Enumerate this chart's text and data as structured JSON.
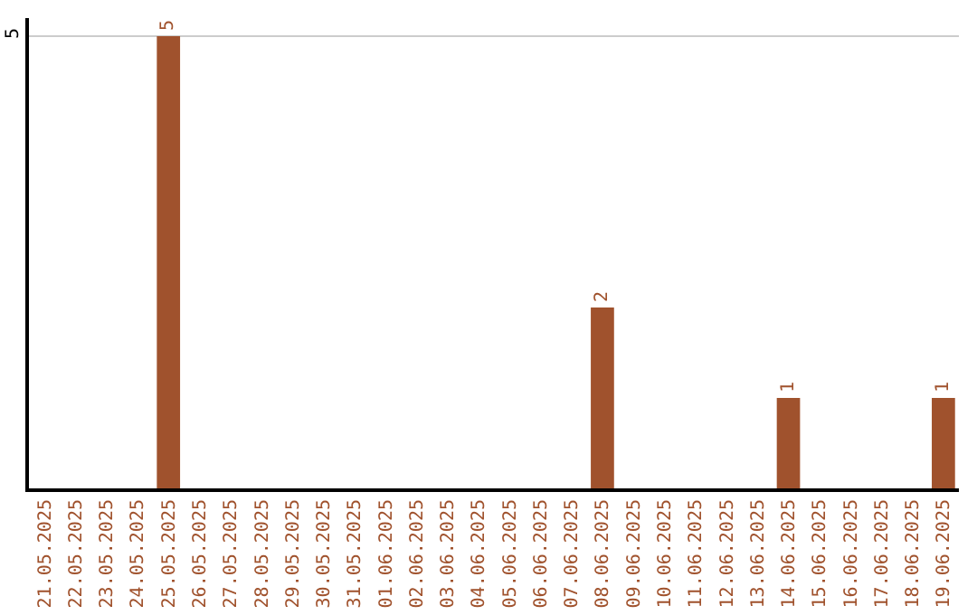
{
  "chart_data": {
    "type": "bar",
    "categories": [
      "21.05.2025",
      "22.05.2025",
      "23.05.2025",
      "24.05.2025",
      "25.05.2025",
      "26.05.2025",
      "27.05.2025",
      "28.05.2025",
      "29.05.2025",
      "30.05.2025",
      "31.05.2025",
      "01.06.2025",
      "02.06.2025",
      "03.06.2025",
      "04.06.2025",
      "05.06.2025",
      "06.06.2025",
      "07.06.2025",
      "08.06.2025",
      "09.06.2025",
      "10.06.2025",
      "11.06.2025",
      "12.06.2025",
      "13.06.2025",
      "14.06.2025",
      "15.06.2025",
      "16.06.2025",
      "17.06.2025",
      "18.06.2025",
      "19.06.2025"
    ],
    "values": [
      0,
      0,
      0,
      0,
      5,
      0,
      0,
      0,
      0,
      0,
      0,
      0,
      0,
      0,
      0,
      0,
      0,
      0,
      2,
      0,
      0,
      0,
      0,
      0,
      1,
      0,
      0,
      0,
      0,
      1
    ],
    "value_labels": [
      null,
      null,
      null,
      null,
      "5",
      null,
      null,
      null,
      null,
      null,
      null,
      null,
      null,
      null,
      null,
      null,
      null,
      null,
      "2",
      null,
      null,
      null,
      null,
      null,
      "1",
      null,
      null,
      null,
      null,
      "1"
    ],
    "color": "#a0522d",
    "ylim": [
      0,
      5.2
    ],
    "yticks": [
      5
    ],
    "grid": "y",
    "legend": false
  }
}
